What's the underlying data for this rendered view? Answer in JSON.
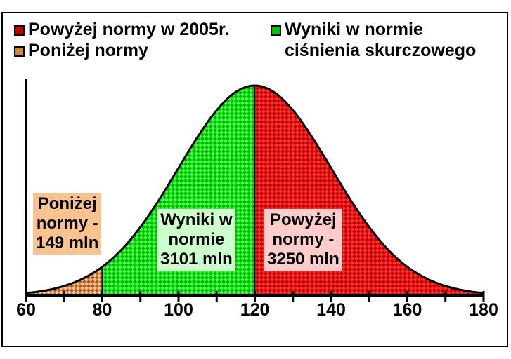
{
  "chart_data": {
    "type": "area",
    "title": "",
    "xlabel": "",
    "ylabel": "",
    "xlim": [
      60,
      180
    ],
    "xticks": [
      "60",
      "80",
      "100",
      "120",
      "140",
      "160",
      "180"
    ],
    "grid": false,
    "legend_placement": "top",
    "curve": {
      "x": [
        60,
        65,
        70,
        75,
        80,
        85,
        90,
        95,
        100,
        105,
        110,
        115,
        120,
        125,
        130,
        135,
        140,
        145,
        150,
        155,
        160,
        165,
        170,
        175,
        180
      ],
      "y": [
        0.011,
        0.022,
        0.044,
        0.08,
        0.135,
        0.216,
        0.325,
        0.458,
        0.607,
        0.755,
        0.882,
        0.969,
        1.0,
        0.969,
        0.882,
        0.755,
        0.607,
        0.458,
        0.325,
        0.216,
        0.135,
        0.08,
        0.044,
        0.022,
        0.011
      ]
    },
    "series": [
      {
        "name": "Poniżej normy",
        "x_range": [
          60,
          80
        ],
        "color": "#b35a1f",
        "highlight": "#f7c28f"
      },
      {
        "name": "Wyniki w normie ciśnienia skurczowego",
        "x_range": [
          80,
          120
        ],
        "color": "#00b800",
        "highlight": "#44ff44"
      },
      {
        "name": "Powyżej normy w 2005r.",
        "x_range": [
          120,
          180
        ],
        "color": "#c00000",
        "highlight": "#ff3030"
      }
    ],
    "annotations": [
      {
        "lines": [
          "Poniżej",
          "normy -",
          "149 mln"
        ],
        "bg": "#f9c38f"
      },
      {
        "lines": [
          "Wyniki w",
          "normie",
          "3101 mln"
        ],
        "bg": "#ccffcc"
      },
      {
        "lines": [
          "Powyżej",
          "normy -",
          "3250 mln"
        ],
        "bg": "#ffcccc"
      }
    ]
  },
  "legend": {
    "above": "Powyżej normy w 2005r.",
    "below": "Poniżej normy",
    "normal_line1": "Wyniki w normie",
    "normal_line2": "ciśnienia skurczowego"
  }
}
